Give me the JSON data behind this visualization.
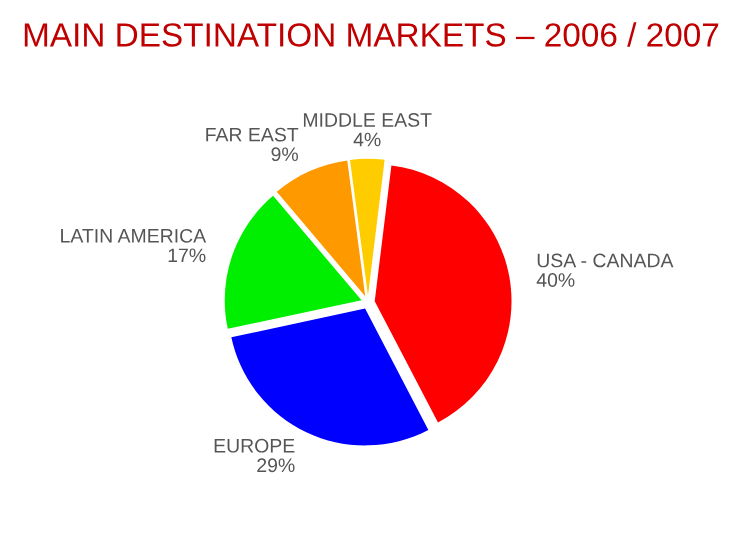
{
  "chart_data": {
    "type": "pie",
    "title": "MAIN DESTINATION MARKETS – 2006 / 2007",
    "categories": [
      "USA - CANADA",
      "EUROPE",
      "LATIN AMERICA",
      "FAR EAST",
      "MIDDLE EAST"
    ],
    "values": [
      40,
      29,
      17,
      9,
      4
    ],
    "value_labels": [
      "40%",
      "29%",
      "17%",
      "9%",
      "4%"
    ],
    "colors": [
      "#ff0000",
      "#0000ff",
      "#00ee00",
      "#ff9900",
      "#ffcc00"
    ]
  }
}
